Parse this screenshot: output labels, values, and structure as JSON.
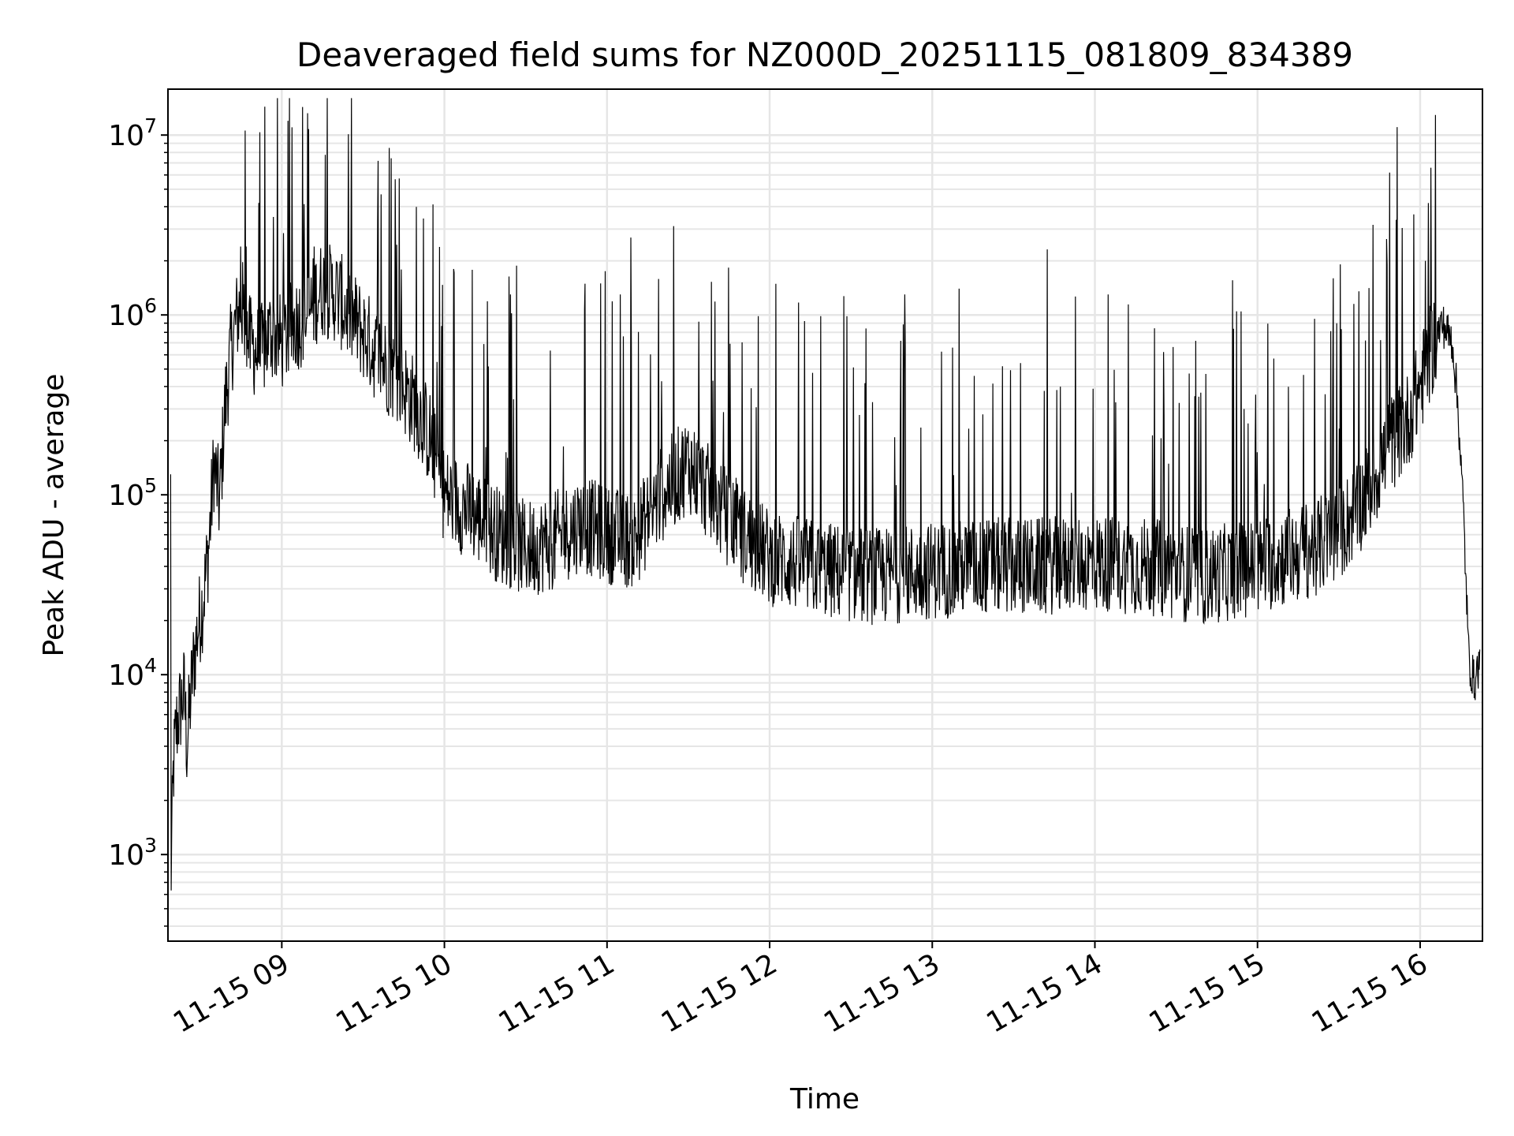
{
  "chart_data": {
    "type": "line",
    "title": "Deaveraged field sums for NZ000D_20251115_081809_834389",
    "xlabel": "Time",
    "ylabel": "Peak ADU - average",
    "y_scale": "log",
    "ylim": [
      330,
      18000000
    ],
    "xlim": [
      "2025-11-15 08:18",
      "2025-11-15 16:23"
    ],
    "grid": "on",
    "legend": "none",
    "line_color": "#000000",
    "grid_color": "#e6e6e6",
    "x_ticks": [
      "11-15 09",
      "11-15 10",
      "11-15 11",
      "11-15 12",
      "11-15 13",
      "11-15 14",
      "11-15 15",
      "11-15 16"
    ],
    "x_tick_values": [
      "2025-11-15 09:00",
      "2025-11-15 10:00",
      "2025-11-15 11:00",
      "2025-11-15 12:00",
      "2025-11-15 13:00",
      "2025-11-15 14:00",
      "2025-11-15 15:00",
      "2025-11-15 16:00"
    ],
    "y_ticks": [
      {
        "value": 1000,
        "base": "10",
        "exp": "3"
      },
      {
        "value": 10000,
        "base": "10",
        "exp": "4"
      },
      {
        "value": 100000,
        "base": "10",
        "exp": "5"
      },
      {
        "value": 1000000,
        "base": "10",
        "exp": "6"
      },
      {
        "value": 10000000,
        "base": "10",
        "exp": "7"
      }
    ],
    "series": [
      {
        "x": [
          "2025-11-15 08:19",
          "2025-11-15 08:20",
          "2025-11-15 08:21",
          "2025-11-15 08:22",
          "2025-11-15 08:24",
          "2025-11-15 08:25",
          "2025-11-15 08:27",
          "2025-11-15 08:29",
          "2025-11-15 08:31",
          "2025-11-15 08:33",
          "2025-11-15 08:35",
          "2025-11-15 08:37",
          "2025-11-15 08:39",
          "2025-11-15 08:41",
          "2025-11-15 08:43",
          "2025-11-15 08:45",
          "2025-11-15 08:48",
          "2025-11-15 08:52",
          "2025-11-15 08:56",
          "2025-11-15 09:00",
          "2025-11-15 09:05",
          "2025-11-15 09:10",
          "2025-11-15 09:13",
          "2025-11-15 09:15",
          "2025-11-15 09:20",
          "2025-11-15 09:25",
          "2025-11-15 09:30",
          "2025-11-15 09:35",
          "2025-11-15 09:40",
          "2025-11-15 09:45",
          "2025-11-15 09:50",
          "2025-11-15 09:55",
          "2025-11-15 10:00",
          "2025-11-15 10:10",
          "2025-11-15 10:20",
          "2025-11-15 10:30",
          "2025-11-15 10:40",
          "2025-11-15 10:50",
          "2025-11-15 11:00",
          "2025-11-15 11:10",
          "2025-11-15 11:20",
          "2025-11-15 11:30",
          "2025-11-15 11:40",
          "2025-11-15 11:50",
          "2025-11-15 12:00",
          "2025-11-15 12:20",
          "2025-11-15 12:40",
          "2025-11-15 13:00",
          "2025-11-15 13:20",
          "2025-11-15 13:40",
          "2025-11-15 14:00",
          "2025-11-15 14:20",
          "2025-11-15 14:40",
          "2025-11-15 15:00",
          "2025-11-15 15:10",
          "2025-11-15 15:20",
          "2025-11-15 15:30",
          "2025-11-15 15:40",
          "2025-11-15 15:50",
          "2025-11-15 15:55",
          "2025-11-15 16:00",
          "2025-11-15 16:05",
          "2025-11-15 16:08",
          "2025-11-15 16:10",
          "2025-11-15 16:12",
          "2025-11-15 16:14",
          "2025-11-15 16:16",
          "2025-11-15 16:18",
          "2025-11-15 16:20",
          "2025-11-15 16:22"
        ],
        "y": [
          600,
          3000,
          5000,
          6000,
          8000,
          4000,
          10000,
          18000,
          26000,
          50000,
          150000,
          90000,
          300000,
          600000,
          900000,
          1200000,
          700000,
          600000,
          800000,
          700000,
          900000,
          1000000,
          1300000,
          1400000,
          1300000,
          1000000,
          800000,
          600000,
          500000,
          400000,
          300000,
          200000,
          100000,
          80000,
          60000,
          50000,
          55000,
          70000,
          60000,
          55000,
          100000,
          150000,
          90000,
          60000,
          45000,
          38000,
          35000,
          38000,
          40000,
          40000,
          42000,
          40000,
          35000,
          40000,
          45000,
          50000,
          60000,
          100000,
          200000,
          250000,
          400000,
          700000,
          900000,
          800000,
          700000,
          300000,
          80000,
          12000,
          9000,
          12000
        ],
        "spikes": [
          {
            "x": "2025-11-15 08:19",
            "y": 130000
          },
          {
            "x": "2025-11-15 08:45",
            "y": 2400000
          },
          {
            "x": "2025-11-15 08:47",
            "y": 2400000
          },
          {
            "x": "2025-11-15 09:10",
            "y": 10800000
          },
          {
            "x": "2025-11-15 09:12",
            "y": 2400000
          },
          {
            "x": "2025-11-15 11:05",
            "y": 1300000
          },
          {
            "x": "2025-11-15 12:50",
            "y": 1300000
          },
          {
            "x": "2025-11-15 13:10",
            "y": 1400000
          },
          {
            "x": "2025-11-15 14:05",
            "y": 1300000
          },
          {
            "x": "2025-11-15 15:28",
            "y": 1600000
          },
          {
            "x": "2025-11-15 15:48",
            "y": 1900000
          },
          {
            "x": "2025-11-15 16:02",
            "y": 2000000
          }
        ]
      }
    ]
  }
}
